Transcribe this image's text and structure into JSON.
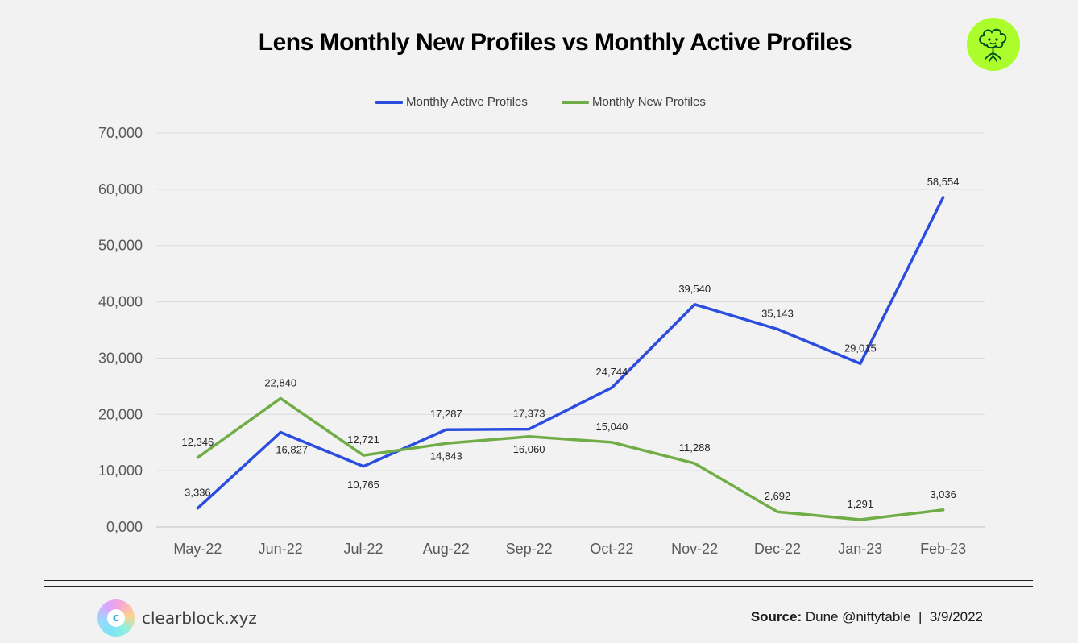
{
  "header": {
    "title": "Lens Monthly New Profiles vs Monthly Active Profiles",
    "logo_icon": "lens-tree-logo-icon"
  },
  "chart_data": {
    "type": "line",
    "title": "Lens Monthly New Profiles vs Monthly Active Profiles",
    "xlabel": "",
    "ylabel": "",
    "categories": [
      "May-22",
      "Jun-22",
      "Jul-22",
      "Aug-22",
      "Sep-22",
      "Oct-22",
      "Nov-22",
      "Dec-22",
      "Jan-23",
      "Feb-23"
    ],
    "ylim": [
      0,
      70000
    ],
    "yticks": [
      0,
      10000,
      20000,
      30000,
      40000,
      50000,
      60000,
      70000
    ],
    "ytick_labels": [
      "0,000",
      "10,000",
      "20,000",
      "30,000",
      "40,000",
      "50,000",
      "60,000",
      "70,000"
    ],
    "grid": true,
    "legend_position": "top-center",
    "series": [
      {
        "name": "Monthly Active Profiles",
        "color": "#2a4de0",
        "values": [
          3336,
          16827,
          10765,
          17287,
          17373,
          24744,
          39540,
          35143,
          29015,
          58554
        ],
        "labels": [
          "3,336",
          "16,827",
          "10,765",
          "17,287",
          "17,373",
          "24,744",
          "39,540",
          "35,143",
          "29,015",
          "58,554"
        ]
      },
      {
        "name": "Monthly New Profiles",
        "color": "#70ad47",
        "values": [
          12346,
          22840,
          12721,
          14843,
          16060,
          15040,
          11288,
          2692,
          1291,
          3036
        ],
        "labels": [
          "12,346",
          "22,840",
          "12,721",
          "14,843",
          "16,060",
          "15,040",
          "11,288",
          "2,692",
          "1,291",
          "3,036"
        ]
      }
    ]
  },
  "footer": {
    "brand_name": "clearblock.xyz",
    "brand_icon_letter": "c",
    "source_label": "Source:",
    "source_text": " Dune @niftytable  |  3/9/2022"
  }
}
